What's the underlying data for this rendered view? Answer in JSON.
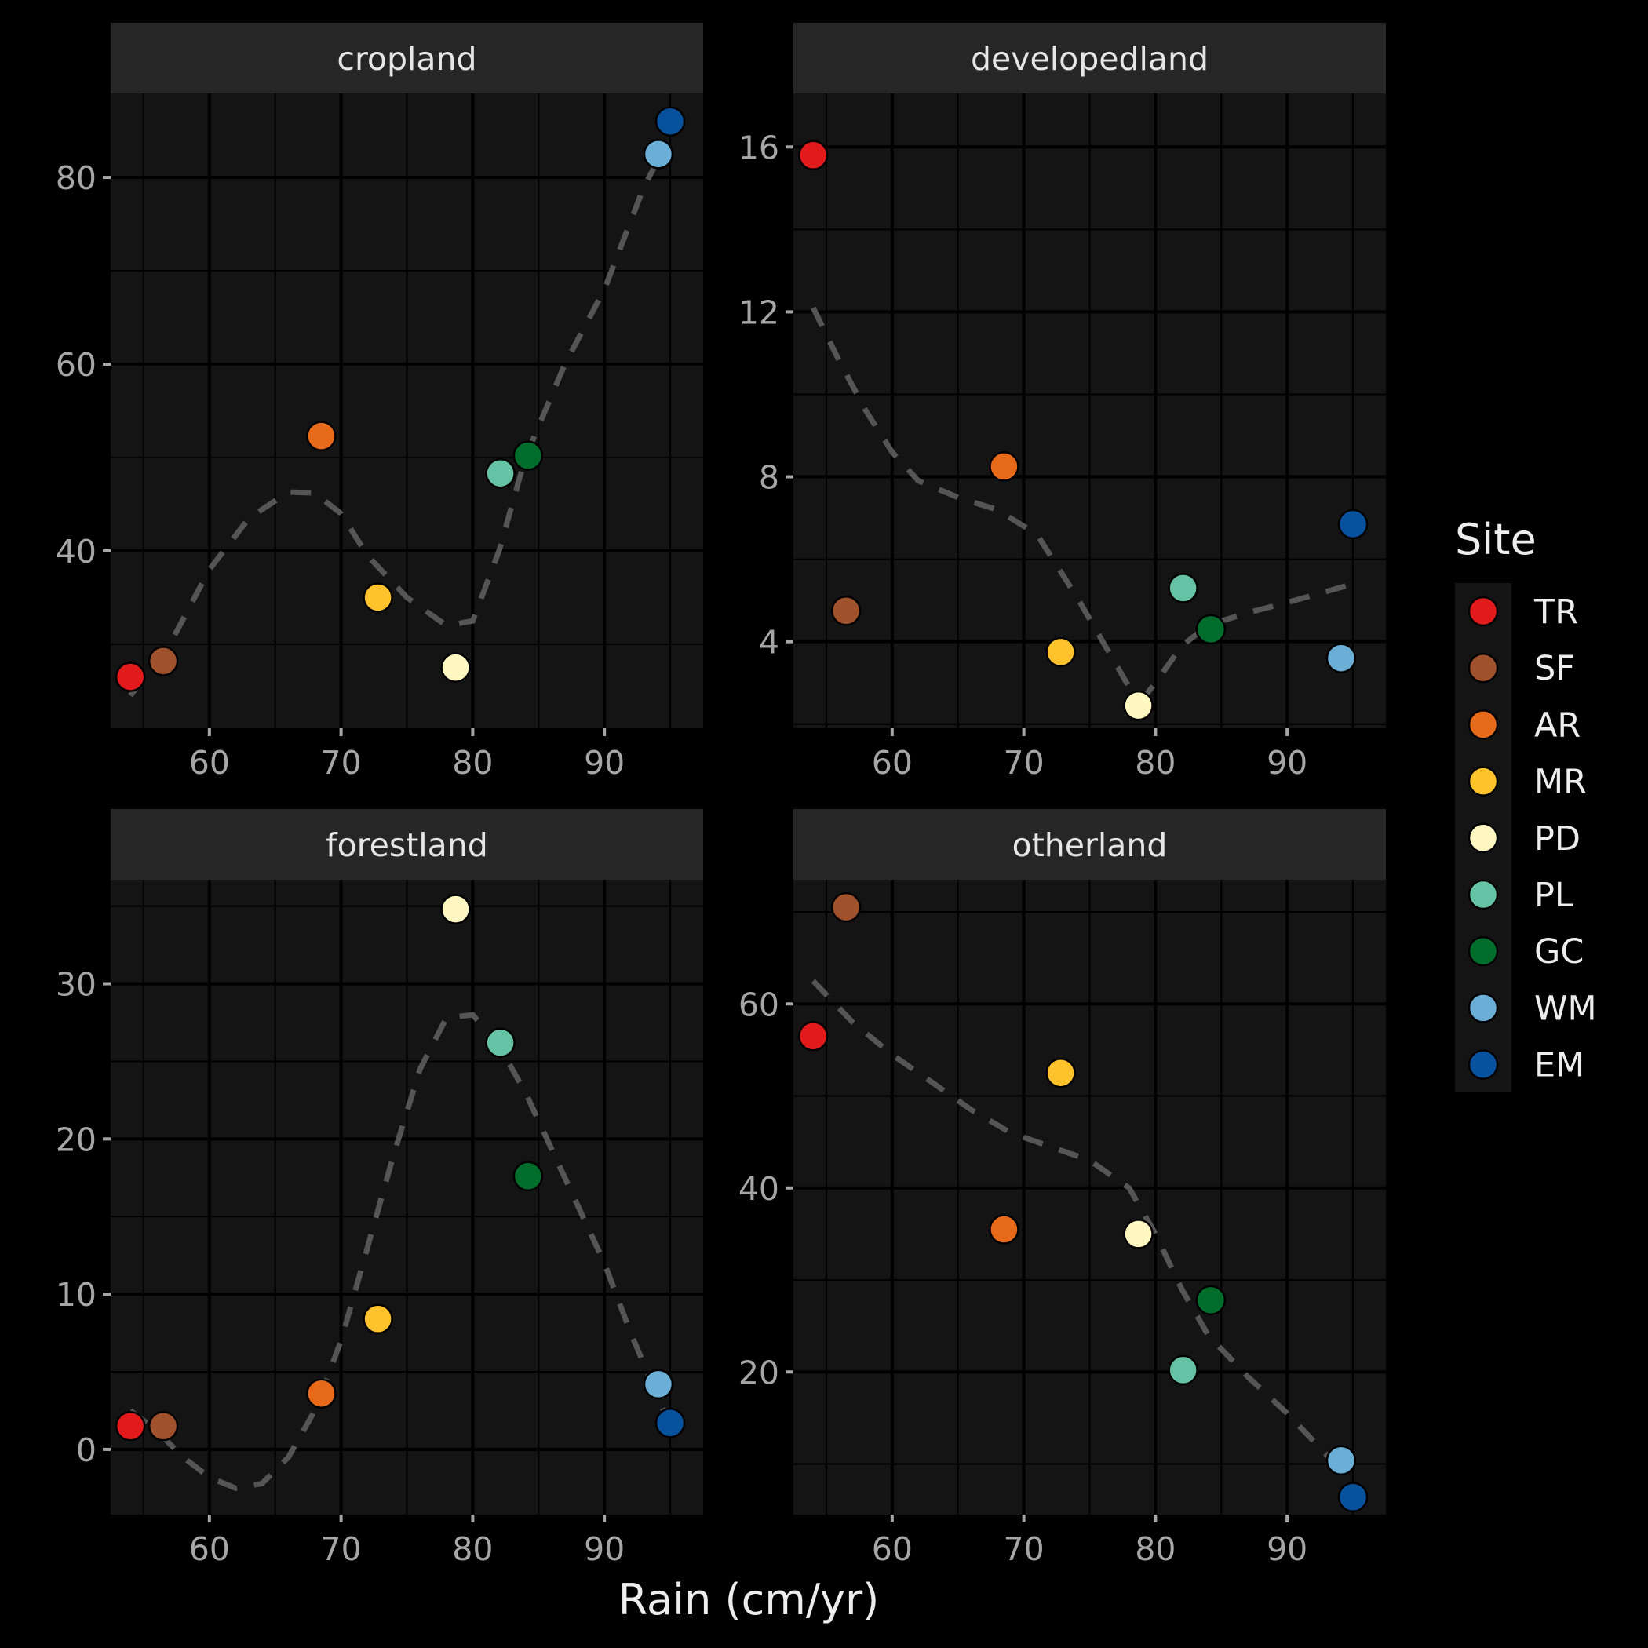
{
  "chart_data": {
    "type": "scatter",
    "xlabel": "Rain (cm/yr)",
    "ylabel": "",
    "legend": {
      "title": "Site",
      "position": "right",
      "entries": [
        {
          "name": "TR",
          "color": "#e31a1c"
        },
        {
          "name": "SF",
          "color": "#a0522d"
        },
        {
          "name": "AR",
          "color": "#e66a1a"
        },
        {
          "name": "MR",
          "color": "#fec22c"
        },
        {
          "name": "PD",
          "color": "#fff7c2"
        },
        {
          "name": "PL",
          "color": "#66c2a4"
        },
        {
          "name": "GC",
          "color": "#006d2c"
        },
        {
          "name": "WM",
          "color": "#6baed6"
        },
        {
          "name": "EM",
          "color": "#08519c"
        }
      ]
    },
    "smoother": {
      "style": "dashed",
      "color": "#555555"
    },
    "grid": true,
    "panels": [
      {
        "title": "cropland",
        "xlim": [
          52.5,
          97.5
        ],
        "ylim": [
          21,
          89
        ],
        "xticks": [
          60,
          70,
          80,
          90
        ],
        "yticks": [
          40,
          60,
          80
        ],
        "points": [
          {
            "site": "TR",
            "x": 54.0,
            "y": 26.5
          },
          {
            "site": "SF",
            "x": 56.5,
            "y": 28.2
          },
          {
            "site": "AR",
            "x": 68.5,
            "y": 52.3
          },
          {
            "site": "MR",
            "x": 72.8,
            "y": 35.0
          },
          {
            "site": "PD",
            "x": 78.7,
            "y": 27.5
          },
          {
            "site": "PL",
            "x": 82.1,
            "y": 48.3
          },
          {
            "site": "GC",
            "x": 84.2,
            "y": 50.2
          },
          {
            "site": "WM",
            "x": 94.1,
            "y": 82.5
          },
          {
            "site": "EM",
            "x": 95.0,
            "y": 86.0
          }
        ],
        "smooth": [
          [
            54,
            24.5
          ],
          [
            57,
            30
          ],
          [
            60,
            38
          ],
          [
            63,
            43.5
          ],
          [
            66,
            46.3
          ],
          [
            68,
            46.2
          ],
          [
            70,
            44
          ],
          [
            72,
            39.5
          ],
          [
            75,
            35
          ],
          [
            78,
            32
          ],
          [
            80,
            32.5
          ],
          [
            82,
            40
          ],
          [
            84,
            50
          ],
          [
            87,
            60
          ],
          [
            90,
            68
          ],
          [
            93,
            79
          ],
          [
            94.5,
            83
          ]
        ]
      },
      {
        "title": "developedland",
        "xlim": [
          52.5,
          97.5
        ],
        "ylim": [
          1.9,
          17.3
        ],
        "xticks": [
          60,
          70,
          80,
          90
        ],
        "yticks": [
          4,
          8,
          12,
          16
        ],
        "points": [
          {
            "site": "TR",
            "x": 54.0,
            "y": 15.8
          },
          {
            "site": "SF",
            "x": 56.5,
            "y": 4.75
          },
          {
            "site": "AR",
            "x": 68.5,
            "y": 8.25
          },
          {
            "site": "MR",
            "x": 72.8,
            "y": 3.75
          },
          {
            "site": "PD",
            "x": 78.7,
            "y": 2.45
          },
          {
            "site": "PL",
            "x": 82.1,
            "y": 5.3
          },
          {
            "site": "GC",
            "x": 84.2,
            "y": 4.3
          },
          {
            "site": "WM",
            "x": 94.1,
            "y": 3.6
          },
          {
            "site": "EM",
            "x": 95.0,
            "y": 6.85
          }
        ],
        "smooth": [
          [
            54,
            12.1
          ],
          [
            56,
            10.8
          ],
          [
            58,
            9.6
          ],
          [
            60,
            8.6
          ],
          [
            62,
            7.9
          ],
          [
            65,
            7.5
          ],
          [
            68,
            7.2
          ],
          [
            71,
            6.6
          ],
          [
            74,
            5.1
          ],
          [
            76,
            4.0
          ],
          [
            78,
            2.9
          ],
          [
            79,
            2.6
          ],
          [
            80,
            3.0
          ],
          [
            82,
            3.9
          ],
          [
            84,
            4.4
          ],
          [
            87,
            4.7
          ],
          [
            90,
            4.95
          ],
          [
            95,
            5.4
          ]
        ]
      },
      {
        "title": "forestland",
        "xlim": [
          52.5,
          97.5
        ],
        "ylim": [
          -4.2,
          36.7
        ],
        "xticks": [
          60,
          70,
          80,
          90
        ],
        "yticks": [
          0,
          10,
          20,
          30
        ],
        "points": [
          {
            "site": "TR",
            "x": 54.0,
            "y": 1.5
          },
          {
            "site": "SF",
            "x": 56.5,
            "y": 1.5
          },
          {
            "site": "AR",
            "x": 68.5,
            "y": 3.6
          },
          {
            "site": "MR",
            "x": 72.8,
            "y": 8.4
          },
          {
            "site": "PD",
            "x": 78.7,
            "y": 34.8
          },
          {
            "site": "PL",
            "x": 82.1,
            "y": 26.2
          },
          {
            "site": "GC",
            "x": 84.2,
            "y": 17.6
          },
          {
            "site": "WM",
            "x": 94.1,
            "y": 4.2
          },
          {
            "site": "EM",
            "x": 95.0,
            "y": 1.7
          }
        ],
        "smooth": [
          [
            54,
            2.5
          ],
          [
            56,
            1.2
          ],
          [
            58,
            -0.5
          ],
          [
            60,
            -1.8
          ],
          [
            62,
            -2.5
          ],
          [
            64,
            -2.2
          ],
          [
            66,
            -0.5
          ],
          [
            68,
            2.5
          ],
          [
            70,
            7
          ],
          [
            72,
            13
          ],
          [
            74,
            19
          ],
          [
            76,
            24.5
          ],
          [
            78,
            27.8
          ],
          [
            80,
            28
          ],
          [
            82,
            26
          ],
          [
            84,
            23
          ],
          [
            87,
            17.5
          ],
          [
            90,
            12
          ],
          [
            92,
            7.5
          ],
          [
            94.5,
            2.5
          ]
        ]
      },
      {
        "title": "otherland",
        "xlim": [
          52.5,
          97.5
        ],
        "ylim": [
          4.5,
          73.5
        ],
        "xticks": [
          60,
          70,
          80,
          90
        ],
        "yticks": [
          20,
          40,
          60
        ],
        "points": [
          {
            "site": "TR",
            "x": 54.0,
            "y": 56.5
          },
          {
            "site": "SF",
            "x": 56.5,
            "y": 70.5
          },
          {
            "site": "AR",
            "x": 68.5,
            "y": 35.5
          },
          {
            "site": "MR",
            "x": 72.8,
            "y": 52.5
          },
          {
            "site": "PD",
            "x": 78.7,
            "y": 35.0
          },
          {
            "site": "PL",
            "x": 82.1,
            "y": 20.2
          },
          {
            "site": "GC",
            "x": 84.2,
            "y": 27.8
          },
          {
            "site": "WM",
            "x": 94.1,
            "y": 10.4
          },
          {
            "site": "EM",
            "x": 95.0,
            "y": 6.4
          }
        ],
        "smooth": [
          [
            54,
            62.5
          ],
          [
            57,
            58
          ],
          [
            60,
            54.5
          ],
          [
            63,
            51.5
          ],
          [
            66,
            48.5
          ],
          [
            69,
            46
          ],
          [
            72,
            44.5
          ],
          [
            75,
            43
          ],
          [
            78,
            40
          ],
          [
            80,
            35
          ],
          [
            82,
            29
          ],
          [
            84,
            24
          ],
          [
            87,
            19.5
          ],
          [
            90,
            15.5
          ],
          [
            93,
            11
          ],
          [
            95,
            8.5
          ]
        ]
      }
    ]
  }
}
